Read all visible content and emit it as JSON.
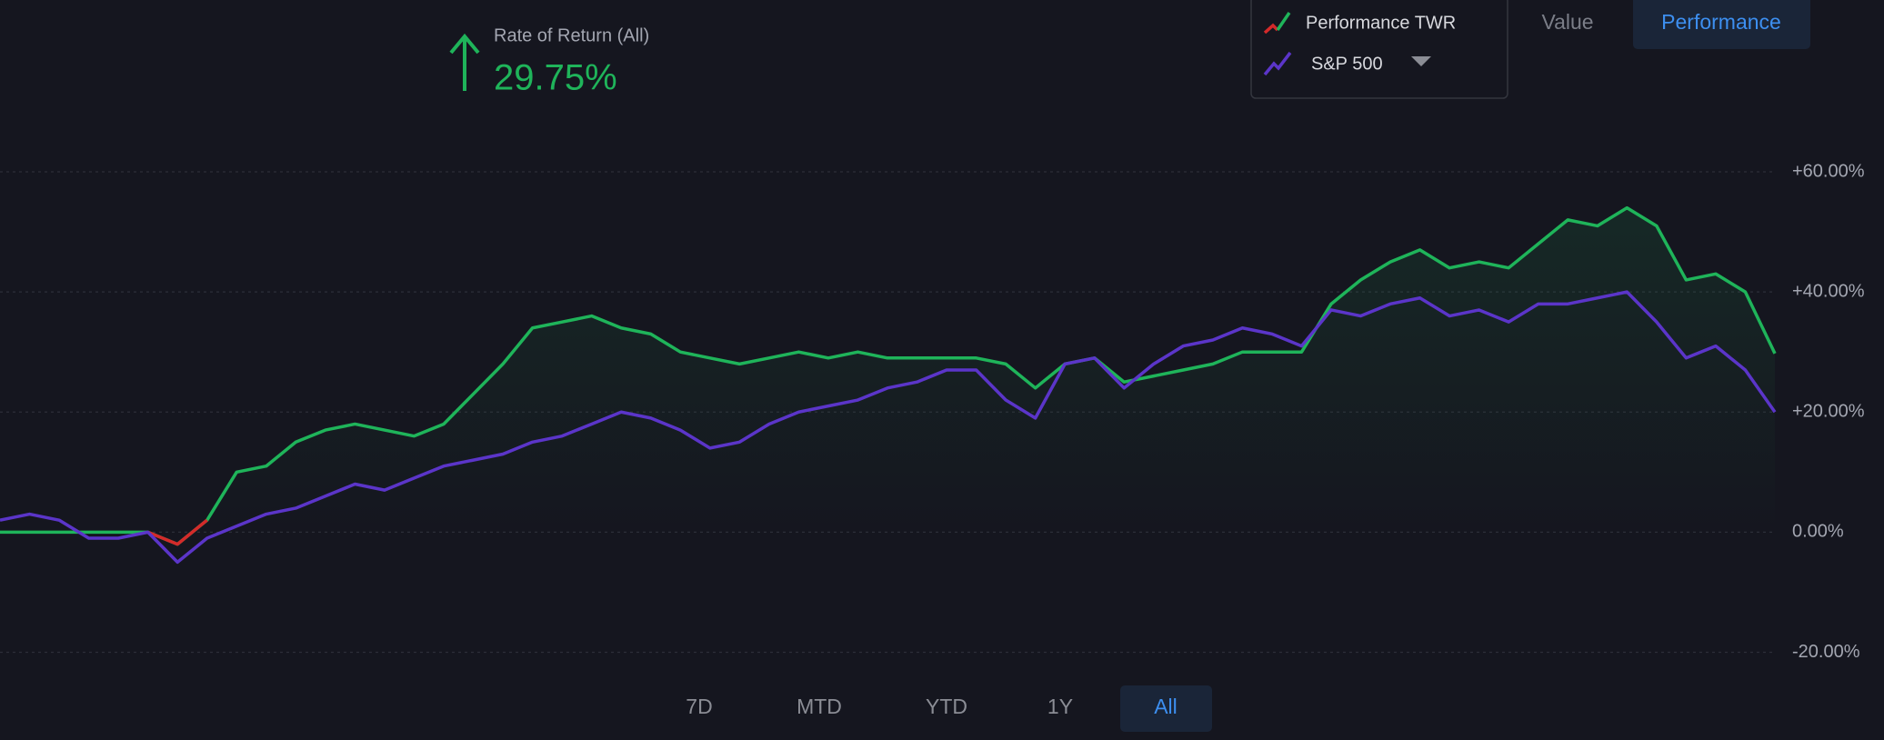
{
  "header": {
    "label": "Rate of Return (All)",
    "value": "29.75%"
  },
  "view_tabs": [
    "Value",
    "Performance"
  ],
  "range_tabs": [
    "7D",
    "MTD",
    "YTD",
    "1Y",
    "All"
  ],
  "chart_data": {
    "type": "line",
    "ylim": [
      -20,
      60
    ],
    "yticks": [
      {
        "value": -20,
        "label": "-20.00%"
      },
      {
        "value": 0,
        "label": "0.00%"
      },
      {
        "value": 20,
        "label": "+20.00%"
      },
      {
        "value": 40,
        "label": "+40.00%"
      },
      {
        "value": 60,
        "label": "+60.00%"
      }
    ],
    "grid": true,
    "series": [
      {
        "name": "Performance TWR",
        "color": "#1fb45a",
        "negative_color": "#d42a2a",
        "values": [
          0,
          0,
          0,
          0,
          0,
          0,
          -2,
          2,
          10,
          11,
          15,
          17,
          18,
          17,
          16,
          18,
          23,
          28,
          34,
          35,
          36,
          34,
          33,
          30,
          29,
          28,
          29,
          30,
          29,
          30,
          29,
          29,
          29,
          29,
          28,
          24,
          28,
          29,
          25,
          26,
          27,
          28,
          30,
          30,
          30,
          38,
          42,
          45,
          47,
          44,
          45,
          44,
          48,
          52,
          51,
          54,
          51,
          42,
          43,
          40,
          29.75
        ]
      },
      {
        "name": "S&P 500",
        "color": "#5b35c9",
        "values": [
          2,
          3,
          2,
          -1,
          -1,
          0,
          -5,
          -1,
          1,
          3,
          4,
          6,
          8,
          7,
          9,
          11,
          12,
          13,
          15,
          16,
          18,
          20,
          19,
          17,
          14,
          15,
          18,
          20,
          21,
          22,
          24,
          25,
          27,
          27,
          22,
          19,
          28,
          29,
          24,
          28,
          31,
          32,
          34,
          33,
          31,
          37,
          36,
          38,
          39,
          36,
          37,
          35,
          38,
          38,
          39,
          40,
          35,
          29,
          31,
          27,
          20
        ]
      }
    ]
  }
}
